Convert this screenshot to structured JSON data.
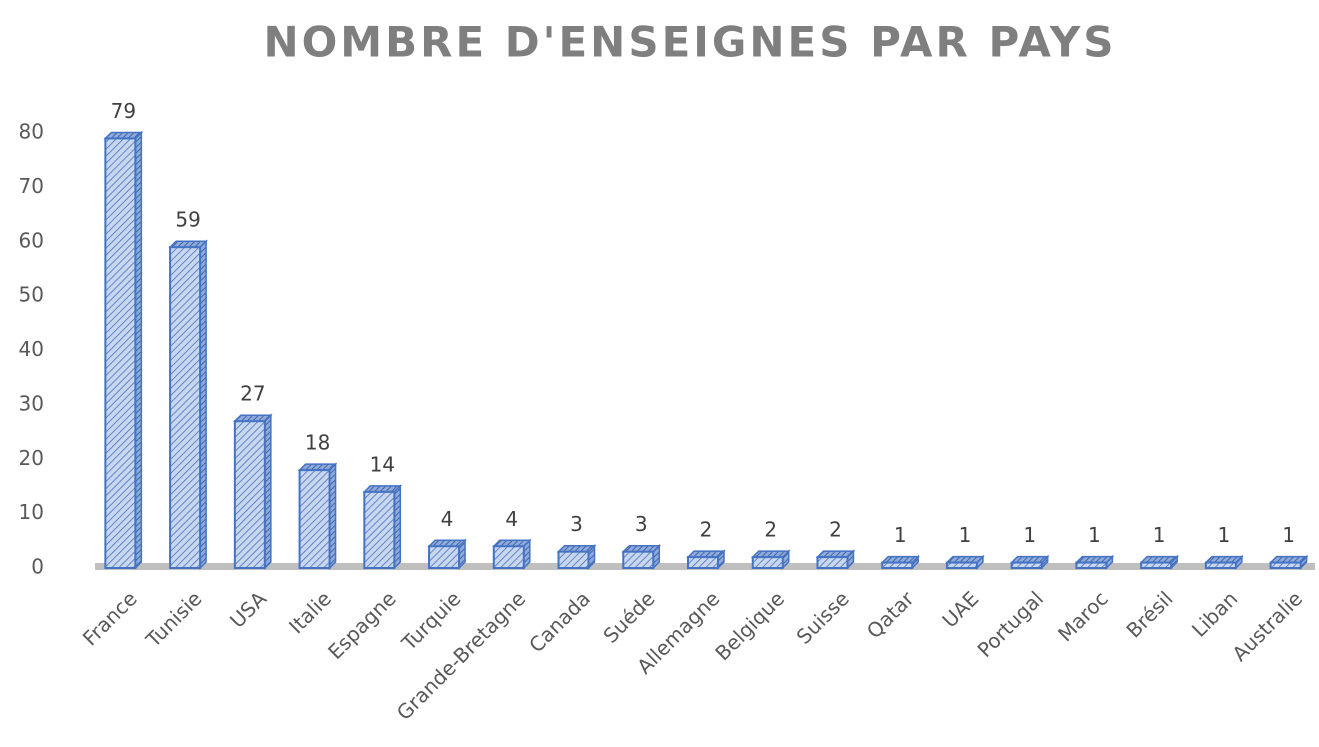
{
  "chart_data": {
    "type": "bar",
    "title": "NOMBRE D'ENSEIGNES PAR PAYS",
    "categories": [
      "France",
      "Tunisie",
      "USA",
      "Italie",
      "Espagne",
      "Turquie",
      "Grande-Bretagne",
      "Canada",
      "Suéde",
      "Allemagne",
      "Belgique",
      "Suisse",
      "Qatar",
      "UAE",
      "Portugal",
      "Maroc",
      "Brésil",
      "Liban",
      "Australie"
    ],
    "values": [
      79,
      59,
      27,
      18,
      14,
      4,
      4,
      3,
      3,
      2,
      2,
      2,
      1,
      1,
      1,
      1,
      1,
      1,
      1
    ],
    "color": "#4472c4",
    "ylim": [
      0,
      80
    ],
    "yticks": [
      0,
      10,
      20,
      30,
      40,
      50,
      60,
      70,
      80
    ],
    "grid": false
  }
}
